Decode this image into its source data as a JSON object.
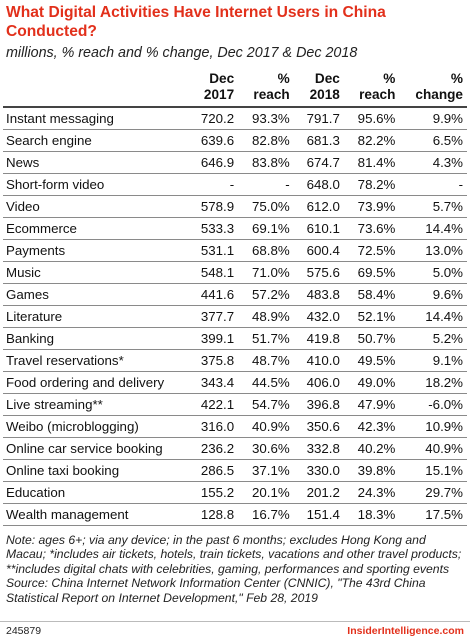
{
  "header": {
    "title": "What Digital Activities Have Internet Users in China Conducted?",
    "subtitle": "millions, % reach and % change, Dec 2017 & Dec 2018"
  },
  "table": {
    "columns": [
      {
        "line1": "",
        "line2": ""
      },
      {
        "line1": "Dec",
        "line2": "2017"
      },
      {
        "line1": "%",
        "line2": "reach"
      },
      {
        "line1": "Dec",
        "line2": "2018"
      },
      {
        "line1": "%",
        "line2": "reach"
      },
      {
        "line1": "%",
        "line2": "change"
      }
    ],
    "rows": [
      [
        "Instant messaging",
        "720.2",
        "93.3%",
        "791.7",
        "95.6%",
        "9.9%"
      ],
      [
        "Search engine",
        "639.6",
        "82.8%",
        "681.3",
        "82.2%",
        "6.5%"
      ],
      [
        "News",
        "646.9",
        "83.8%",
        "674.7",
        "81.4%",
        "4.3%"
      ],
      [
        "Short-form video",
        "-",
        "-",
        "648.0",
        "78.2%",
        "-"
      ],
      [
        "Video",
        "578.9",
        "75.0%",
        "612.0",
        "73.9%",
        "5.7%"
      ],
      [
        "Ecommerce",
        "533.3",
        "69.1%",
        "610.1",
        "73.6%",
        "14.4%"
      ],
      [
        "Payments",
        "531.1",
        "68.8%",
        "600.4",
        "72.5%",
        "13.0%"
      ],
      [
        "Music",
        "548.1",
        "71.0%",
        "575.6",
        "69.5%",
        "5.0%"
      ],
      [
        "Games",
        "441.6",
        "57.2%",
        "483.8",
        "58.4%",
        "9.6%"
      ],
      [
        "Literature",
        "377.7",
        "48.9%",
        "432.0",
        "52.1%",
        "14.4%"
      ],
      [
        "Banking",
        "399.1",
        "51.7%",
        "419.8",
        "50.7%",
        "5.2%"
      ],
      [
        "Travel reservations*",
        "375.8",
        "48.7%",
        "410.0",
        "49.5%",
        "9.1%"
      ],
      [
        "Food ordering and delivery",
        "343.4",
        "44.5%",
        "406.0",
        "49.0%",
        "18.2%"
      ],
      [
        "Live streaming**",
        "422.1",
        "54.7%",
        "396.8",
        "47.9%",
        "-6.0%"
      ],
      [
        "Weibo (microblogging)",
        "316.0",
        "40.9%",
        "350.6",
        "42.3%",
        "10.9%"
      ],
      [
        "Online car service booking",
        "236.2",
        "30.6%",
        "332.8",
        "40.2%",
        "40.9%"
      ],
      [
        "Online taxi booking",
        "286.5",
        "37.1%",
        "330.0",
        "39.8%",
        "15.1%"
      ],
      [
        "Education",
        "155.2",
        "20.1%",
        "201.2",
        "24.3%",
        "29.7%"
      ],
      [
        "Wealth management",
        "128.8",
        "16.7%",
        "151.4",
        "18.3%",
        "17.5%"
      ]
    ]
  },
  "notes": {
    "note": "Note: ages 6+; via any device; in the past 6 months; excludes Hong Kong and Macau; *includes air tickets, hotels, train tickets, vacations and other travel products; **includes digital chats with celebrities, gaming, performances and sporting events",
    "source": "Source: China Internet Network Information Center (CNNIC), \"The 43rd China Statistical Report on Internet Development,\" Feb 28, 2019"
  },
  "footer": {
    "chart_id": "245879",
    "brand": "InsiderIntelligence.com"
  },
  "colors": {
    "title": "#e2301b",
    "brand": "#e2301b"
  },
  "chart_data": {
    "type": "table",
    "title": "What Digital Activities Have Internet Users in China Conducted?",
    "subtitle": "millions, % reach and % change, Dec 2017 & Dec 2018",
    "columns": [
      "Dec 2017",
      "% reach",
      "Dec 2018",
      "% reach",
      "% change"
    ],
    "categories": [
      "Instant messaging",
      "Search engine",
      "News",
      "Short-form video",
      "Video",
      "Ecommerce",
      "Payments",
      "Music",
      "Games",
      "Literature",
      "Banking",
      "Travel reservations*",
      "Food ordering and delivery",
      "Live streaming**",
      "Weibo (microblogging)",
      "Online car service booking",
      "Online taxi booking",
      "Education",
      "Wealth management"
    ],
    "series": [
      {
        "name": "Dec 2017",
        "values": [
          720.2,
          639.6,
          646.9,
          null,
          578.9,
          533.3,
          531.1,
          548.1,
          441.6,
          377.7,
          399.1,
          375.8,
          343.4,
          422.1,
          316.0,
          236.2,
          286.5,
          155.2,
          128.8
        ]
      },
      {
        "name": "% reach",
        "values": [
          93.3,
          82.8,
          83.8,
          null,
          75.0,
          69.1,
          68.8,
          71.0,
          57.2,
          48.9,
          51.7,
          48.7,
          44.5,
          54.7,
          40.9,
          30.6,
          37.1,
          20.1,
          16.7
        ]
      },
      {
        "name": "Dec 2018",
        "values": [
          791.7,
          681.3,
          674.7,
          648.0,
          612.0,
          610.1,
          600.4,
          575.6,
          483.8,
          432.0,
          419.8,
          410.0,
          406.0,
          396.8,
          350.6,
          332.8,
          330.0,
          201.2,
          151.4
        ]
      },
      {
        "name": "% reach",
        "values": [
          95.6,
          82.2,
          81.4,
          78.2,
          73.9,
          73.6,
          72.5,
          69.5,
          58.4,
          52.1,
          50.7,
          49.5,
          49.0,
          47.9,
          42.3,
          40.2,
          39.8,
          24.3,
          18.3
        ]
      },
      {
        "name": "% change",
        "values": [
          9.9,
          6.5,
          4.3,
          null,
          5.7,
          14.4,
          13.0,
          5.0,
          9.6,
          14.4,
          5.2,
          9.1,
          18.2,
          -6.0,
          10.9,
          40.9,
          15.1,
          29.7,
          17.5
        ]
      }
    ]
  }
}
